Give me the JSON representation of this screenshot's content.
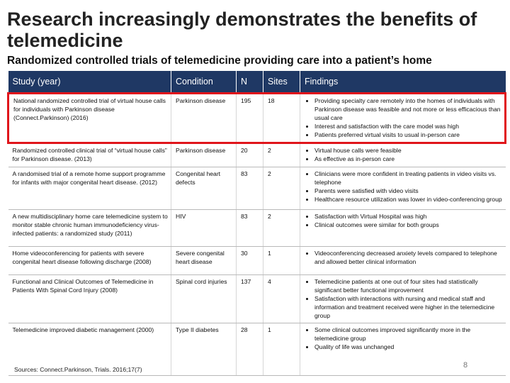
{
  "title": "Research increasingly demonstrates the benefits of telemedicine",
  "subtitle": "Randomized controlled trials of telemedicine providing care into a patient’s home",
  "columns": [
    "Study (year)",
    "Condition",
    "N",
    "Sites",
    "Findings"
  ],
  "rows": [
    {
      "study": "National randomized controlled trial of virtual house calls for individuals with Parkinson disease (Connect.Parkinson) (2016)",
      "condition": "Parkinson disease",
      "n": "195",
      "sites": "18",
      "findings": [
        "Providing specialty care remotely into the homes of individuals with Parkinson disease was feasible and not more or less efficacious than usual care",
        "Interest and satisfaction with the care model was high",
        "Patients preferred virtual visits to usual in-person care"
      ],
      "highlighted": true
    },
    {
      "study": "Randomized controlled clinical trial of “virtual house calls” for Parkinson disease. (2013)",
      "condition": "Parkinson disease",
      "n": "20",
      "sites": "2",
      "findings": [
        "Virtual house calls were feasible",
        "As effective as in-person care"
      ]
    },
    {
      "study": "A randomised trial of a remote home support programme for infants with major congenital heart disease. (2012)",
      "condition": "Congenital heart defects",
      "n": "83",
      "sites": "2",
      "findings": [
        "Clinicians were more confident in treating patients in video visits vs. telephone",
        "Parents were satisfied with video visits",
        "Healthcare resource utilization was lower in video-conferencing group"
      ]
    },
    {
      "study": "A new multidisciplinary home care telemedicine system to monitor stable chronic human immunodeficiency virus-infected patients: a randomized study (2011)",
      "condition": "HIV",
      "n": "83",
      "sites": "2",
      "findings": [
        "Satisfaction with Virtual Hospital was high",
        "Clinical outcomes were similar for both groups"
      ]
    },
    {
      "study": "Home videoconferencing for patients with severe congenital heart disease following discharge (2008)",
      "condition": "Severe congenital heart disease",
      "n": "30",
      "sites": "1",
      "findings": [
        "Videoconferencing decreased anxiety levels compared to telephone and allowed better clinical information"
      ]
    },
    {
      "study": "Functional and Clinical Outcomes of Telemedicine in Patients With Spinal Cord Injury (2008)",
      "condition": "Spinal cord injuries",
      "n": "137",
      "sites": "4",
      "findings": [
        "Telemedicine patients at one out of four sites had statistically significant better functional improvement",
        "Satisfaction with interactions with nursing and medical staff and information and treatment received were higher in the telemedicine group"
      ]
    },
    {
      "study": "Telemedicine improved diabetic management (2000)",
      "condition": "Type II diabetes",
      "n": "28",
      "sites": "1",
      "findings": [
        "Some clinical outcomes improved significantly more in the telemedicine group",
        "Quality of life was unchanged"
      ]
    }
  ],
  "footer": "Sources: Connect.Parkinson, Trials. 2016;17(7)",
  "page_number": "8",
  "colors": {
    "header_bg": "#1f3864",
    "highlight_border": "#e0151b"
  }
}
